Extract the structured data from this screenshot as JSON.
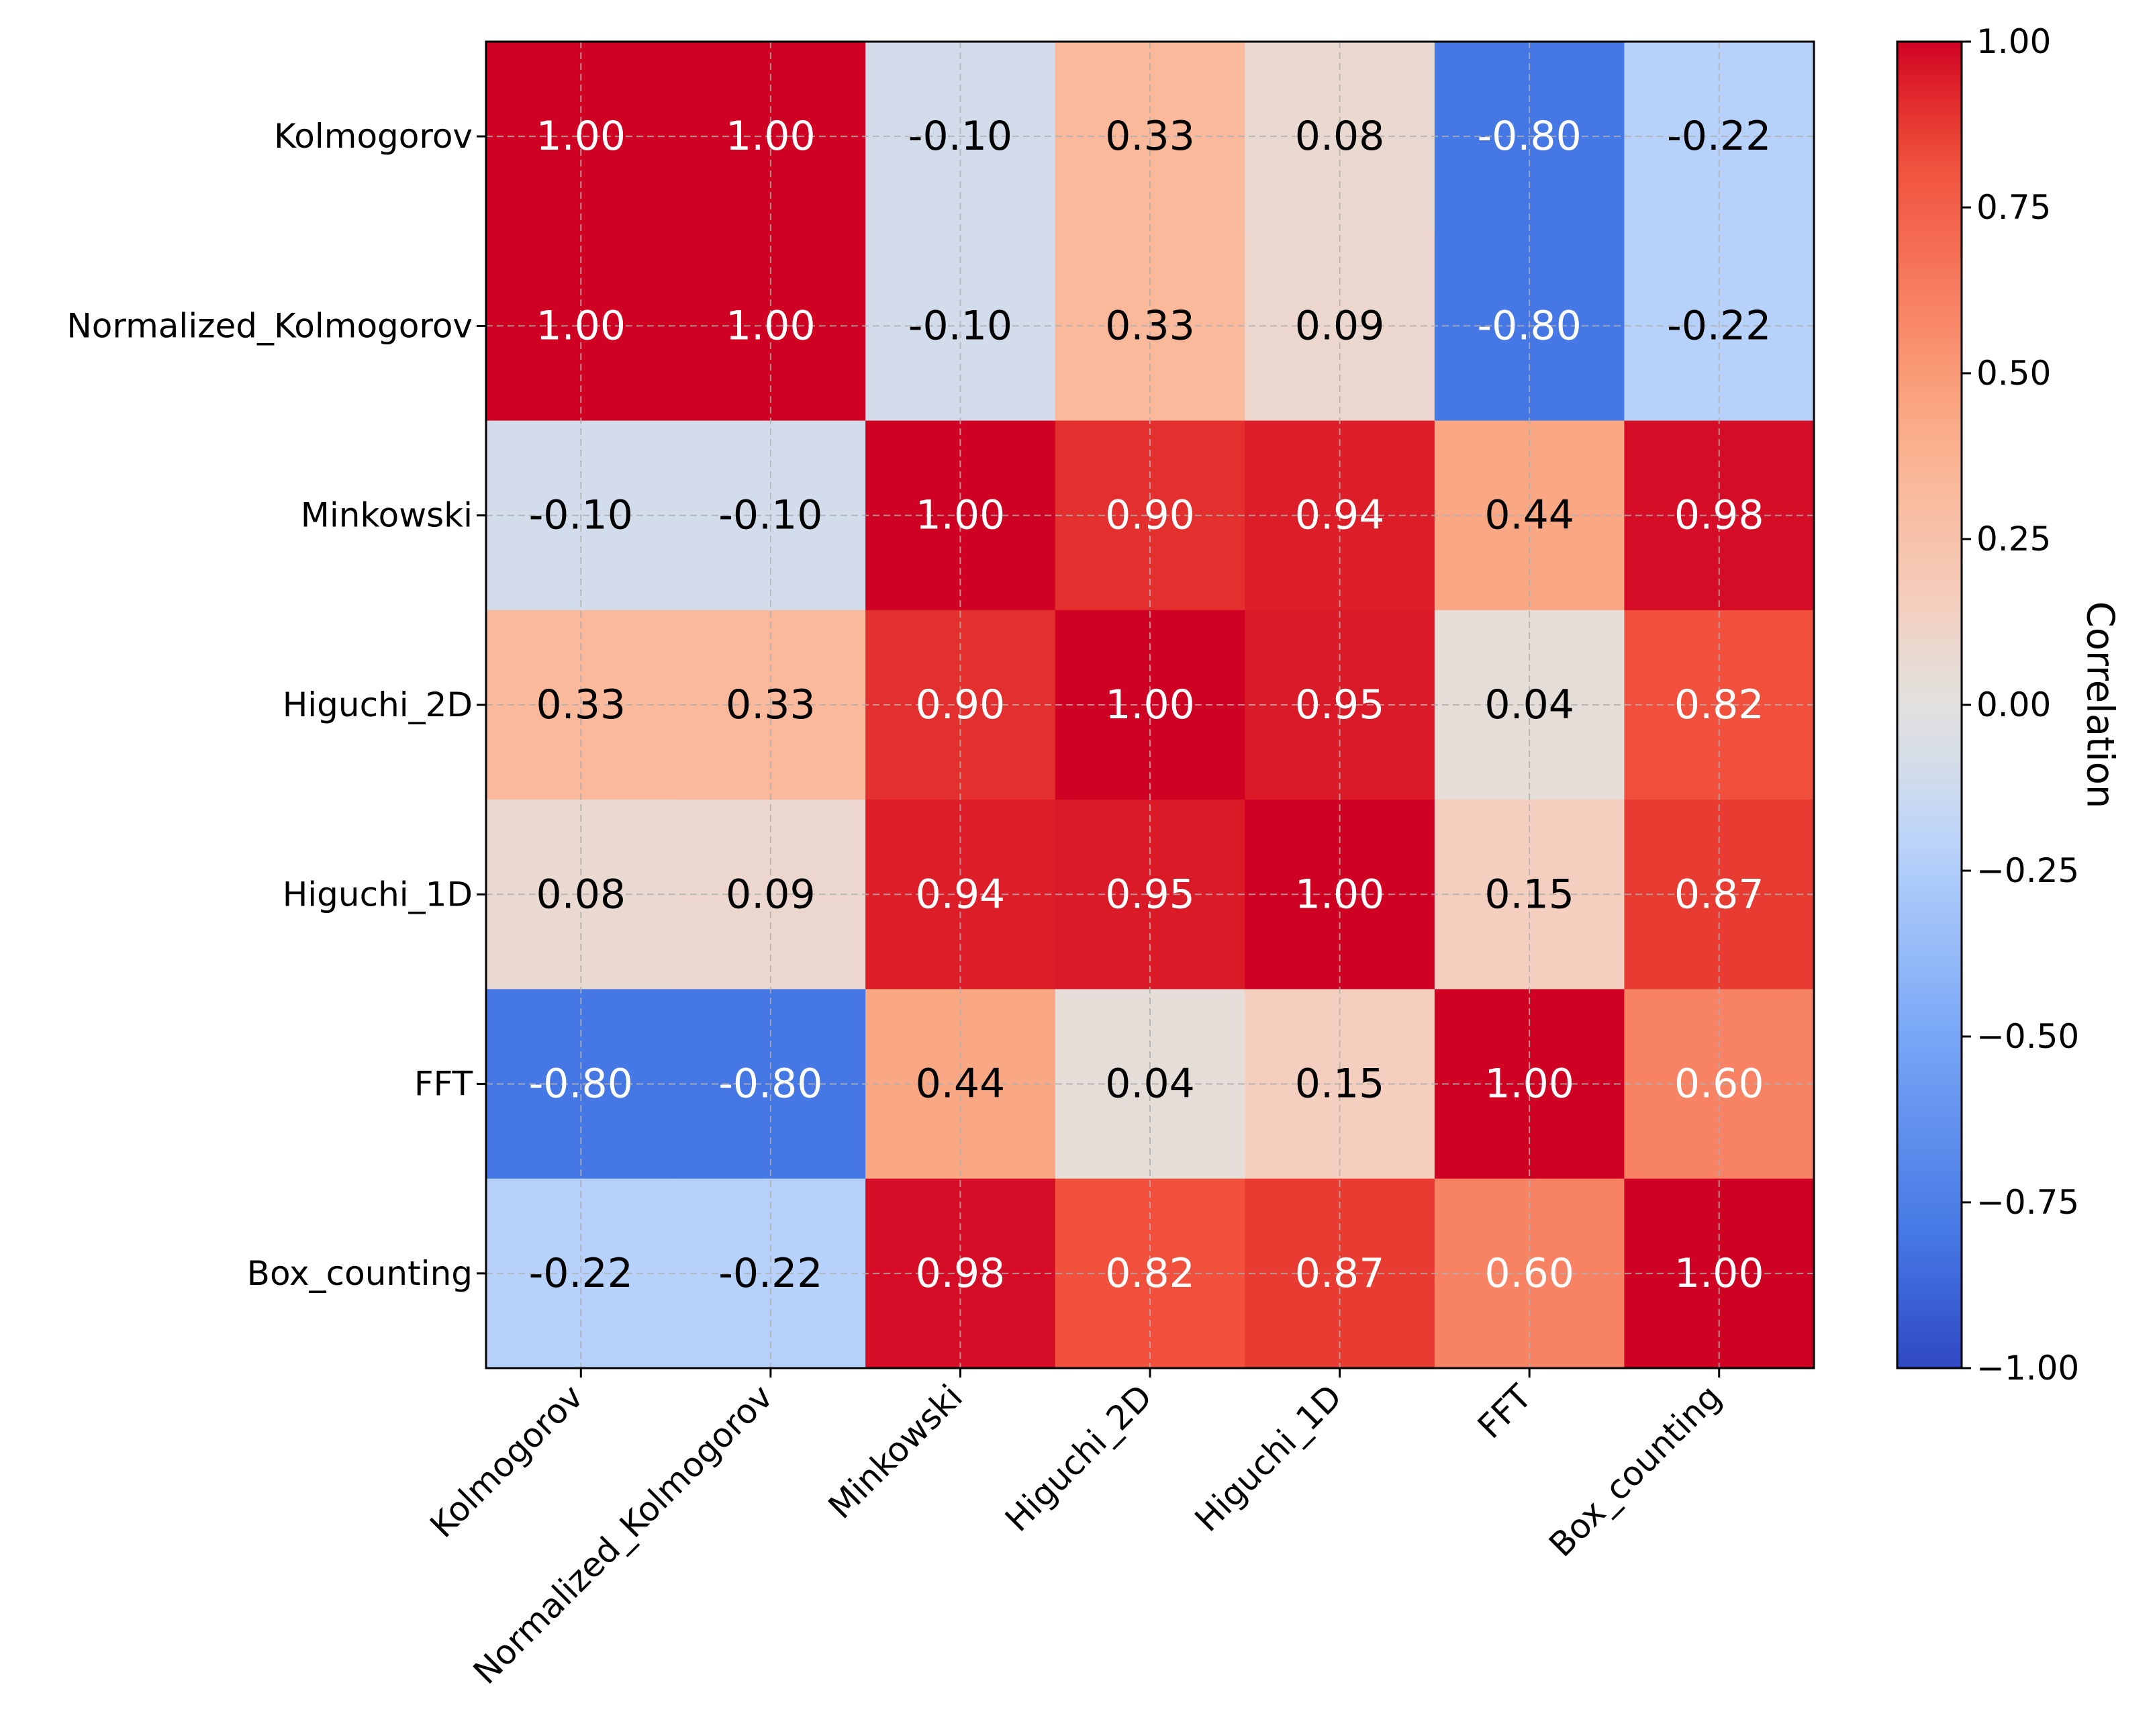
{
  "chart_data": {
    "type": "heatmap",
    "title": "",
    "xlabel": "",
    "ylabel": "",
    "row_labels": [
      "Kolmogorov",
      "Normalized_Kolmogorov",
      "Minkowski",
      "Higuchi_2D",
      "Higuchi_1D",
      "FFT",
      "Box_counting"
    ],
    "col_labels": [
      "Kolmogorov",
      "Normalized_Kolmogorov",
      "Minkowski",
      "Higuchi_2D",
      "Higuchi_1D",
      "FFT",
      "Box_counting"
    ],
    "values": [
      [
        1.0,
        1.0,
        -0.1,
        0.33,
        0.08,
        -0.8,
        -0.22
      ],
      [
        1.0,
        1.0,
        -0.1,
        0.33,
        0.09,
        -0.8,
        -0.22
      ],
      [
        -0.1,
        -0.1,
        1.0,
        0.9,
        0.94,
        0.44,
        0.98
      ],
      [
        0.33,
        0.33,
        0.9,
        1.0,
        0.95,
        0.04,
        0.82
      ],
      [
        0.08,
        0.09,
        0.94,
        0.95,
        1.0,
        0.15,
        0.87
      ],
      [
        -0.8,
        -0.8,
        0.44,
        0.04,
        0.15,
        1.0,
        0.6
      ],
      [
        -0.22,
        -0.22,
        0.98,
        0.82,
        0.87,
        0.6,
        1.0
      ]
    ],
    "cell_text": [
      [
        "1.00",
        "1.00",
        "-0.10",
        "0.33",
        "0.08",
        "-0.80",
        "-0.22"
      ],
      [
        "1.00",
        "1.00",
        "-0.10",
        "0.33",
        "0.09",
        "-0.80",
        "-0.22"
      ],
      [
        "-0.10",
        "-0.10",
        "1.00",
        "0.90",
        "0.94",
        "0.44",
        "0.98"
      ],
      [
        "0.33",
        "0.33",
        "0.90",
        "1.00",
        "0.95",
        "0.04",
        "0.82"
      ],
      [
        "0.08",
        "0.09",
        "0.94",
        "0.95",
        "1.00",
        "0.15",
        "0.87"
      ],
      [
        "-0.80",
        "-0.80",
        "0.44",
        "0.04",
        "0.15",
        "1.00",
        "0.60"
      ],
      [
        "-0.22",
        "-0.22",
        "0.98",
        "0.82",
        "0.87",
        "0.60",
        "1.00"
      ]
    ],
    "colormap": "coolwarm",
    "vmin": -1.0,
    "vmax": 1.0,
    "grid": true,
    "colorbar": {
      "label": "Correlation",
      "ticks": [
        1.0,
        0.75,
        0.5,
        0.25,
        0.0,
        -0.25,
        -0.5,
        -0.75,
        -1.0
      ],
      "tick_labels": [
        "1.00",
        "0.75",
        "0.50",
        "0.25",
        "0.00",
        "−0.25",
        "−0.50",
        "−0.75",
        "−1.00"
      ]
    }
  }
}
